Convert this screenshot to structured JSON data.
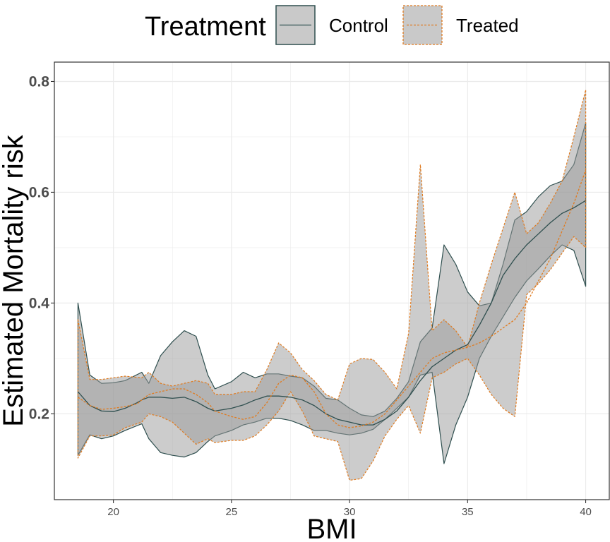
{
  "chart_data": {
    "type": "area",
    "xlabel": "BMI",
    "ylabel": "Estimated Mortality risk",
    "xlim": [
      17.5,
      41.0
    ],
    "ylim": [
      0.045,
      0.835
    ],
    "xticks": [
      20,
      25,
      30,
      35,
      40
    ],
    "xtick_labels": [
      "20",
      "25",
      "30",
      "35",
      "40"
    ],
    "yticks": [
      0.2,
      0.4,
      0.6,
      0.8
    ],
    "ytick_labels": [
      "0.2",
      "0.4",
      "0.6",
      "0.8"
    ],
    "grid": true,
    "legend": {
      "title": "Treatment",
      "position": "top",
      "entries": [
        "Control",
        "Treated"
      ]
    },
    "colors": {
      "control_line": "#2f4f4f",
      "treated_line": "#e07b20",
      "ribbon_fill": "#999999",
      "panel_border": "#333333",
      "grid": "#ebebeb"
    },
    "series": [
      {
        "name": "Control",
        "line": [
          [
            18.5,
            0.24
          ],
          [
            19.0,
            0.215
          ],
          [
            19.5,
            0.205
          ],
          [
            20.0,
            0.204
          ],
          [
            20.5,
            0.21
          ],
          [
            21.0,
            0.22
          ],
          [
            21.2,
            0.225
          ],
          [
            21.5,
            0.23
          ],
          [
            22.0,
            0.23
          ],
          [
            22.5,
            0.228
          ],
          [
            23.0,
            0.23
          ],
          [
            23.5,
            0.222
          ],
          [
            24.0,
            0.21
          ],
          [
            24.3,
            0.205
          ],
          [
            25.0,
            0.21
          ],
          [
            25.5,
            0.216
          ],
          [
            26.0,
            0.225
          ],
          [
            26.5,
            0.232
          ],
          [
            27.0,
            0.232
          ],
          [
            27.5,
            0.23
          ],
          [
            28.0,
            0.225
          ],
          [
            28.5,
            0.215
          ],
          [
            29.0,
            0.2
          ],
          [
            29.5,
            0.19
          ],
          [
            30.0,
            0.185
          ],
          [
            30.5,
            0.18
          ],
          [
            31.0,
            0.18
          ],
          [
            31.5,
            0.19
          ],
          [
            32.0,
            0.205
          ],
          [
            32.5,
            0.23
          ],
          [
            33.0,
            0.26
          ],
          [
            33.5,
            0.285
          ],
          [
            34.0,
            0.3
          ],
          [
            34.5,
            0.315
          ],
          [
            35.0,
            0.325
          ],
          [
            35.5,
            0.36
          ],
          [
            36.0,
            0.4
          ],
          [
            36.5,
            0.45
          ],
          [
            37.0,
            0.48
          ],
          [
            37.5,
            0.505
          ],
          [
            38.0,
            0.525
          ],
          [
            38.5,
            0.545
          ],
          [
            39.0,
            0.562
          ],
          [
            39.5,
            0.572
          ],
          [
            40.0,
            0.585
          ]
        ],
        "lower": [
          [
            18.5,
            0.125
          ],
          [
            19.0,
            0.162
          ],
          [
            19.5,
            0.155
          ],
          [
            20.0,
            0.16
          ],
          [
            20.5,
            0.17
          ],
          [
            21.2,
            0.182
          ],
          [
            21.5,
            0.155
          ],
          [
            22.0,
            0.13
          ],
          [
            22.5,
            0.125
          ],
          [
            23.0,
            0.122
          ],
          [
            23.5,
            0.13
          ],
          [
            24.0,
            0.15
          ],
          [
            24.3,
            0.16
          ],
          [
            25.0,
            0.17
          ],
          [
            25.5,
            0.18
          ],
          [
            26.0,
            0.185
          ],
          [
            26.5,
            0.192
          ],
          [
            27.0,
            0.192
          ],
          [
            27.5,
            0.188
          ],
          [
            28.0,
            0.18
          ],
          [
            28.5,
            0.17
          ],
          [
            29.0,
            0.17
          ],
          [
            29.5,
            0.165
          ],
          [
            30.0,
            0.162
          ],
          [
            30.5,
            0.165
          ],
          [
            31.0,
            0.172
          ],
          [
            31.5,
            0.19
          ],
          [
            32.0,
            0.21
          ],
          [
            32.5,
            0.23
          ],
          [
            33.0,
            0.27
          ],
          [
            33.5,
            0.275
          ],
          [
            34.0,
            0.11
          ],
          [
            34.5,
            0.18
          ],
          [
            35.0,
            0.23
          ],
          [
            35.5,
            0.3
          ],
          [
            36.0,
            0.34
          ],
          [
            36.5,
            0.375
          ],
          [
            37.0,
            0.41
          ],
          [
            37.5,
            0.44
          ],
          [
            38.0,
            0.462
          ],
          [
            38.5,
            0.485
          ],
          [
            39.0,
            0.505
          ],
          [
            39.5,
            0.495
          ],
          [
            40.0,
            0.43
          ]
        ],
        "upper": [
          [
            18.5,
            0.4
          ],
          [
            19.0,
            0.27
          ],
          [
            19.5,
            0.255
          ],
          [
            20.0,
            0.256
          ],
          [
            20.5,
            0.26
          ],
          [
            21.2,
            0.275
          ],
          [
            21.5,
            0.255
          ],
          [
            22.0,
            0.305
          ],
          [
            22.5,
            0.33
          ],
          [
            23.0,
            0.35
          ],
          [
            23.5,
            0.34
          ],
          [
            24.0,
            0.27
          ],
          [
            24.3,
            0.245
          ],
          [
            25.0,
            0.258
          ],
          [
            25.5,
            0.275
          ],
          [
            26.0,
            0.265
          ],
          [
            26.5,
            0.272
          ],
          [
            27.0,
            0.272
          ],
          [
            27.5,
            0.268
          ],
          [
            28.0,
            0.265
          ],
          [
            28.5,
            0.25
          ],
          [
            29.0,
            0.228
          ],
          [
            29.5,
            0.225
          ],
          [
            30.0,
            0.21
          ],
          [
            30.5,
            0.198
          ],
          [
            31.0,
            0.195
          ],
          [
            31.5,
            0.205
          ],
          [
            32.0,
            0.228
          ],
          [
            32.5,
            0.258
          ],
          [
            33.0,
            0.33
          ],
          [
            33.5,
            0.355
          ],
          [
            34.0,
            0.505
          ],
          [
            34.5,
            0.47
          ],
          [
            35.0,
            0.42
          ],
          [
            35.5,
            0.395
          ],
          [
            36.0,
            0.4
          ],
          [
            36.5,
            0.47
          ],
          [
            37.0,
            0.55
          ],
          [
            37.5,
            0.565
          ],
          [
            38.0,
            0.592
          ],
          [
            38.5,
            0.612
          ],
          [
            39.0,
            0.62
          ],
          [
            39.5,
            0.65
          ],
          [
            40.0,
            0.725
          ]
        ]
      },
      {
        "name": "Treated",
        "line": [
          [
            18.5,
            0.23
          ],
          [
            19.0,
            0.215
          ],
          [
            19.5,
            0.208
          ],
          [
            20.0,
            0.21
          ],
          [
            20.5,
            0.213
          ],
          [
            21.0,
            0.218
          ],
          [
            21.2,
            0.225
          ],
          [
            21.5,
            0.235
          ],
          [
            22.0,
            0.24
          ],
          [
            22.5,
            0.245
          ],
          [
            23.0,
            0.245
          ],
          [
            23.5,
            0.235
          ],
          [
            24.0,
            0.22
          ],
          [
            24.3,
            0.205
          ],
          [
            25.0,
            0.195
          ],
          [
            25.5,
            0.19
          ],
          [
            26.0,
            0.195
          ],
          [
            26.5,
            0.22
          ],
          [
            27.0,
            0.255
          ],
          [
            27.5,
            0.27
          ],
          [
            28.0,
            0.265
          ],
          [
            28.5,
            0.24
          ],
          [
            29.0,
            0.2
          ],
          [
            29.5,
            0.18
          ],
          [
            30.0,
            0.175
          ],
          [
            30.5,
            0.178
          ],
          [
            31.0,
            0.185
          ],
          [
            31.5,
            0.2
          ],
          [
            32.0,
            0.225
          ],
          [
            32.5,
            0.25
          ],
          [
            33.0,
            0.275
          ],
          [
            33.5,
            0.3
          ],
          [
            34.0,
            0.31
          ],
          [
            34.5,
            0.315
          ],
          [
            35.0,
            0.32
          ],
          [
            35.5,
            0.328
          ],
          [
            36.0,
            0.34
          ],
          [
            36.5,
            0.355
          ],
          [
            37.0,
            0.37
          ],
          [
            37.5,
            0.4
          ],
          [
            38.0,
            0.44
          ],
          [
            38.5,
            0.48
          ],
          [
            39.0,
            0.53
          ],
          [
            39.5,
            0.58
          ],
          [
            40.0,
            0.64
          ]
        ],
        "lower": [
          [
            18.5,
            0.12
          ],
          [
            19.0,
            0.16
          ],
          [
            19.5,
            0.16
          ],
          [
            20.0,
            0.162
          ],
          [
            20.5,
            0.175
          ],
          [
            21.2,
            0.185
          ],
          [
            21.5,
            0.2
          ],
          [
            22.0,
            0.195
          ],
          [
            22.5,
            0.185
          ],
          [
            23.0,
            0.165
          ],
          [
            23.5,
            0.145
          ],
          [
            24.0,
            0.155
          ],
          [
            24.3,
            0.148
          ],
          [
            25.0,
            0.152
          ],
          [
            25.5,
            0.152
          ],
          [
            26.0,
            0.16
          ],
          [
            26.5,
            0.18
          ],
          [
            27.0,
            0.205
          ],
          [
            27.5,
            0.24
          ],
          [
            28.0,
            0.205
          ],
          [
            28.5,
            0.16
          ],
          [
            29.0,
            0.155
          ],
          [
            29.5,
            0.15
          ],
          [
            30.0,
            0.08
          ],
          [
            30.5,
            0.083
          ],
          [
            31.0,
            0.115
          ],
          [
            31.5,
            0.16
          ],
          [
            32.0,
            0.19
          ],
          [
            32.5,
            0.215
          ],
          [
            33.0,
            0.165
          ],
          [
            33.5,
            0.265
          ],
          [
            34.0,
            0.275
          ],
          [
            34.5,
            0.29
          ],
          [
            35.0,
            0.3
          ],
          [
            35.5,
            0.27
          ],
          [
            36.0,
            0.235
          ],
          [
            36.5,
            0.21
          ],
          [
            37.0,
            0.195
          ],
          [
            37.5,
            0.415
          ],
          [
            38.0,
            0.435
          ],
          [
            38.5,
            0.46
          ],
          [
            39.0,
            0.49
          ],
          [
            39.5,
            0.52
          ],
          [
            40.0,
            0.5
          ]
        ],
        "upper": [
          [
            18.5,
            0.37
          ],
          [
            19.0,
            0.262
          ],
          [
            19.5,
            0.262
          ],
          [
            20.0,
            0.265
          ],
          [
            20.5,
            0.268
          ],
          [
            21.2,
            0.265
          ],
          [
            21.5,
            0.275
          ],
          [
            22.0,
            0.255
          ],
          [
            22.5,
            0.25
          ],
          [
            23.0,
            0.255
          ],
          [
            23.5,
            0.26
          ],
          [
            24.0,
            0.255
          ],
          [
            24.3,
            0.235
          ],
          [
            25.0,
            0.235
          ],
          [
            25.5,
            0.24
          ],
          [
            26.0,
            0.24
          ],
          [
            26.5,
            0.28
          ],
          [
            27.0,
            0.328
          ],
          [
            27.5,
            0.31
          ],
          [
            28.0,
            0.28
          ],
          [
            28.5,
            0.26
          ],
          [
            29.0,
            0.235
          ],
          [
            29.5,
            0.225
          ],
          [
            30.0,
            0.29
          ],
          [
            30.5,
            0.3
          ],
          [
            31.0,
            0.298
          ],
          [
            31.5,
            0.275
          ],
          [
            32.0,
            0.245
          ],
          [
            32.5,
            0.345
          ],
          [
            33.0,
            0.65
          ],
          [
            33.5,
            0.35
          ],
          [
            34.0,
            0.37
          ],
          [
            34.5,
            0.35
          ],
          [
            35.0,
            0.32
          ],
          [
            35.5,
            0.4
          ],
          [
            36.0,
            0.47
          ],
          [
            36.5,
            0.535
          ],
          [
            37.0,
            0.6
          ],
          [
            37.5,
            0.525
          ],
          [
            38.0,
            0.545
          ],
          [
            38.5,
            0.58
          ],
          [
            39.0,
            0.62
          ],
          [
            39.5,
            0.7
          ],
          [
            40.0,
            0.785
          ]
        ]
      }
    ]
  }
}
